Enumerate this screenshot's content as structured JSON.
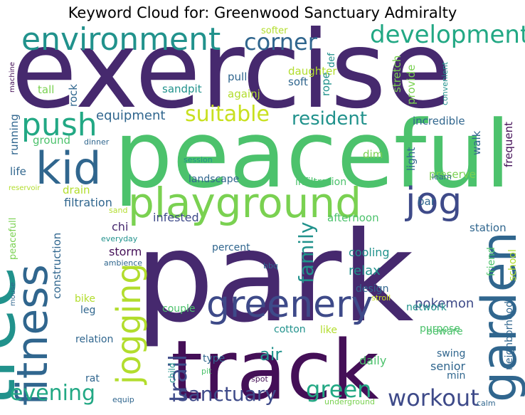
{
  "chart_data": {
    "type": "wordcloud",
    "title": "Keyword Cloud for: Greenwood Sanctuary Admiralty",
    "colormap": "viridis",
    "background": "#ffffff",
    "words": [
      {
        "text": "exercise",
        "weight": 100,
        "color": "#46296e"
      },
      {
        "text": "park",
        "weight": 98,
        "color": "#46296e"
      },
      {
        "text": "peaceful",
        "weight": 82,
        "color": "#4cc26c"
      },
      {
        "text": "track",
        "weight": 72,
        "color": "#440f57"
      },
      {
        "text": "tree",
        "weight": 62,
        "color": "#21928c"
      },
      {
        "text": "playground",
        "weight": 48,
        "color": "#7ad151"
      },
      {
        "text": "garden",
        "weight": 44,
        "color": "#30668e"
      },
      {
        "text": "kid",
        "weight": 44,
        "color": "#30668e"
      },
      {
        "text": "greenery",
        "weight": 40,
        "color": "#3e4a89"
      },
      {
        "text": "fitness",
        "weight": 40,
        "color": "#30668e"
      },
      {
        "text": "environment",
        "weight": 36,
        "color": "#21928c"
      },
      {
        "text": "jog",
        "weight": 36,
        "color": "#3e4a89"
      },
      {
        "text": "jogging",
        "weight": 32,
        "color": "#b2dd2d"
      },
      {
        "text": "push",
        "weight": 30,
        "color": "#22a884"
      },
      {
        "text": "development",
        "weight": 26,
        "color": "#22a884"
      },
      {
        "text": "workout",
        "weight": 26,
        "color": "#3e4a89"
      },
      {
        "text": "trail",
        "weight": 26,
        "color": "#3e4a89"
      },
      {
        "text": "corner",
        "weight": 24,
        "color": "#30668e"
      },
      {
        "text": "suitable",
        "weight": 24,
        "color": "#c8e020"
      },
      {
        "text": "evening",
        "weight": 24,
        "color": "#22a884"
      },
      {
        "text": "sanctuary",
        "weight": 24,
        "color": "#3e4a89"
      },
      {
        "text": "green",
        "weight": 24,
        "color": "#22a884"
      },
      {
        "text": "family",
        "weight": 22,
        "color": "#21928c"
      },
      {
        "text": "resident",
        "weight": 20,
        "color": "#21928c"
      },
      {
        "text": "air",
        "weight": 18,
        "color": "#21928c"
      },
      {
        "text": "equipment",
        "weight": 15,
        "color": "#30668e"
      },
      {
        "text": "relax",
        "weight": 14,
        "color": "#21928c"
      },
      {
        "text": "pokemon",
        "weight": 14,
        "color": "#3e4a89"
      },
      {
        "text": "cooling",
        "weight": 13,
        "color": "#21928c"
      },
      {
        "text": "filtration",
        "weight": 13,
        "color": "#30668e"
      },
      {
        "text": "senior",
        "weight": 13,
        "color": "#30668e"
      },
      {
        "text": "storm",
        "weight": 13,
        "color": "#440f57"
      },
      {
        "text": "daily",
        "weight": 13,
        "color": "#4cc26c"
      },
      {
        "text": "chi",
        "weight": 13,
        "color": "#46296e"
      },
      {
        "text": "infested",
        "weight": 13,
        "color": "#3e4a89"
      },
      {
        "text": "landscape",
        "weight": 12,
        "color": "#30668e"
      },
      {
        "text": "infiltration",
        "weight": 12,
        "color": "#4cc26c"
      },
      {
        "text": "afternoon",
        "weight": 12,
        "color": "#4cc26c"
      },
      {
        "text": "station",
        "weight": 12,
        "color": "#30668e"
      },
      {
        "text": "construction",
        "weight": 12,
        "color": "#30668e"
      },
      {
        "text": "neighborhood",
        "weight": 12,
        "color": "#30668e"
      },
      {
        "text": "school",
        "weight": 12,
        "color": "#b2dd2d"
      },
      {
        "text": "friend",
        "weight": 12,
        "color": "#4cc26c"
      },
      {
        "text": "incredible",
        "weight": 12,
        "color": "#30668e"
      },
      {
        "text": "walk",
        "weight": 12,
        "color": "#30668e"
      },
      {
        "text": "frequent",
        "weight": 12,
        "color": "#440f57"
      },
      {
        "text": "light",
        "weight": 12,
        "color": "#30668e"
      },
      {
        "text": "preserve",
        "weight": 12,
        "color": "#7ad151"
      },
      {
        "text": "dim",
        "weight": 12,
        "color": "#7ad151"
      },
      {
        "text": "pull",
        "weight": 12,
        "color": "#30668e"
      },
      {
        "text": "soft",
        "weight": 12,
        "color": "#30668e"
      },
      {
        "text": "sandpit",
        "weight": 12,
        "color": "#21928c"
      },
      {
        "text": "daughter",
        "weight": 12,
        "color": "#b2dd2d"
      },
      {
        "text": "provide",
        "weight": 12,
        "color": "#7ad151"
      },
      {
        "text": "stretch",
        "weight": 12,
        "color": "#7ad151"
      },
      {
        "text": "rope",
        "weight": 12,
        "color": "#21928c"
      },
      {
        "text": "againj",
        "weight": 12,
        "color": "#b2dd2d"
      },
      {
        "text": "tall",
        "weight": 12,
        "color": "#7ad151"
      },
      {
        "text": "rock",
        "weight": 12,
        "color": "#30668e"
      },
      {
        "text": "running",
        "weight": 12,
        "color": "#30668e"
      },
      {
        "text": "ground",
        "weight": 12,
        "color": "#4cc26c"
      },
      {
        "text": "life",
        "weight": 12,
        "color": "#30668e"
      },
      {
        "text": "drain",
        "weight": 12,
        "color": "#b2dd2d"
      },
      {
        "text": "bar",
        "weight": 12,
        "color": "#30668e"
      },
      {
        "text": "percent",
        "weight": 12,
        "color": "#30668e"
      },
      {
        "text": "design",
        "weight": 12,
        "color": "#30668e"
      },
      {
        "text": "network",
        "weight": 12,
        "color": "#21928c"
      },
      {
        "text": "beware",
        "weight": 12,
        "color": "#4cc26c"
      },
      {
        "text": "purpose",
        "weight": 12,
        "color": "#4cc26c"
      },
      {
        "text": "couple",
        "weight": 12,
        "color": "#4cc26c"
      },
      {
        "text": "cotton",
        "weight": 12,
        "color": "#21928c"
      },
      {
        "text": "like",
        "weight": 12,
        "color": "#b2dd2d"
      },
      {
        "text": "relation",
        "weight": 12,
        "color": "#30668e"
      },
      {
        "text": "type",
        "weight": 12,
        "color": "#30668e"
      },
      {
        "text": "swing",
        "weight": 12,
        "color": "#30668e"
      },
      {
        "text": "min",
        "weight": 12,
        "color": "#30668e"
      },
      {
        "text": "leg",
        "weight": 12,
        "color": "#30668e"
      },
      {
        "text": "bike",
        "weight": 12,
        "color": "#b2dd2d"
      },
      {
        "text": "rat",
        "weight": 12,
        "color": "#30668e"
      },
      {
        "text": "peacefull",
        "weight": 10,
        "color": "#7ad151"
      },
      {
        "text": "softer",
        "weight": 10,
        "color": "#b2dd2d"
      },
      {
        "text": "def",
        "weight": 10,
        "color": "#21928c"
      },
      {
        "text": "convenient",
        "weight": 9,
        "color": "#21928c"
      },
      {
        "text": "learn",
        "weight": 9,
        "color": "#30668e"
      },
      {
        "text": "calm",
        "weight": 9,
        "color": "#30668e"
      },
      {
        "text": "machine",
        "weight": 9,
        "color": "#440f57"
      },
      {
        "text": "dinner",
        "weight": 9,
        "color": "#30668e"
      },
      {
        "text": "session",
        "weight": 9,
        "color": "#21928c"
      },
      {
        "text": "reservoir",
        "weight": 9,
        "color": "#b2dd2d"
      },
      {
        "text": "sand",
        "weight": 9,
        "color": "#b2dd2d"
      },
      {
        "text": "everyday",
        "weight": 9,
        "color": "#21928c"
      },
      {
        "text": "ambience",
        "weight": 9,
        "color": "#30668e"
      },
      {
        "text": "bbq",
        "weight": 9,
        "color": "#30668e"
      },
      {
        "text": "stroll",
        "weight": 9,
        "color": "#c8e020"
      },
      {
        "text": "mouse",
        "weight": 9,
        "color": "#30668e"
      },
      {
        "text": "child",
        "weight": 9,
        "color": "#21928c"
      },
      {
        "text": "pit",
        "weight": 9,
        "color": "#4cc26c"
      },
      {
        "text": "spot",
        "weight": 9,
        "color": "#440f57"
      },
      {
        "text": "equip",
        "weight": 9,
        "color": "#30668e"
      },
      {
        "text": "underground",
        "weight": 9,
        "color": "#7ad151"
      }
    ]
  }
}
